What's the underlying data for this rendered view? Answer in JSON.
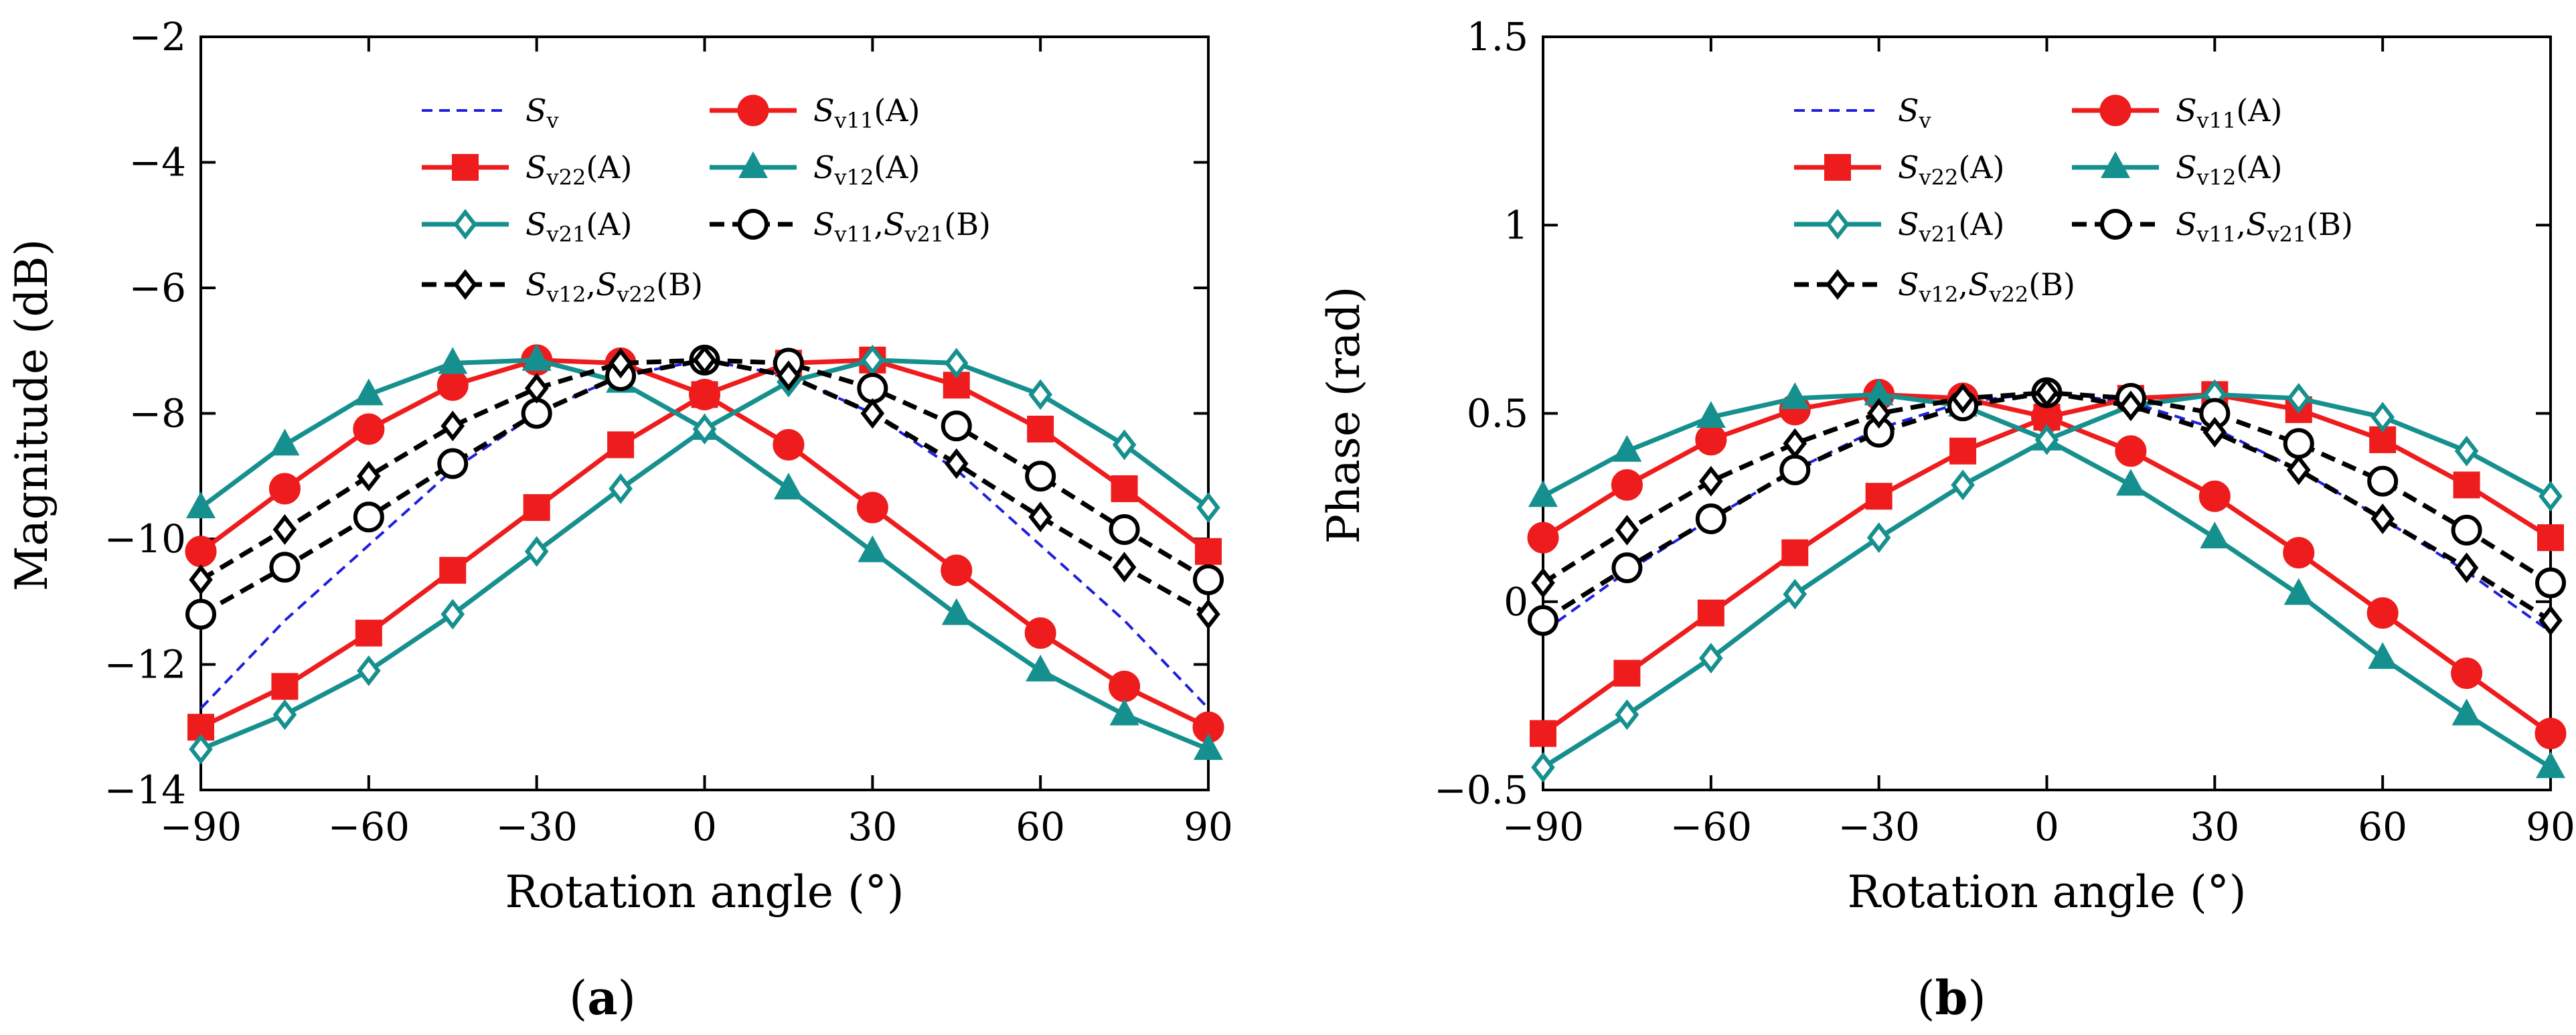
{
  "chart_data": [
    {
      "type": "line",
      "panel_label": "a",
      "xlabel": "Rotation angle (°)",
      "ylabel": "Magnitude (dB)",
      "xlim": [
        -90,
        90
      ],
      "ylim": [
        -14,
        -2
      ],
      "xticks": [
        -90,
        -60,
        -30,
        0,
        30,
        60,
        90
      ],
      "yticks": [
        -14,
        -12,
        -10,
        -8,
        -6,
        -4,
        -2
      ],
      "xtick_labels": [
        "−90",
        "−60",
        "−30",
        "0",
        "30",
        "60",
        "90"
      ],
      "ytick_labels": [
        "−14",
        "−12",
        "−10",
        "−8",
        "−6",
        "−4",
        "−2"
      ],
      "grid": false,
      "legend_position": "top-center",
      "x": [
        -90,
        -75,
        -60,
        -45,
        -30,
        -15,
        0,
        15,
        30,
        45,
        60,
        75,
        90
      ],
      "series": [
        {
          "name": "Sv",
          "label_base": "S",
          "label_sub": "v",
          "label_suffix": "",
          "style": "dashed",
          "marker": "none",
          "color": "#1f1fdd",
          "values": [
            -12.7,
            -11.3,
            -10.1,
            -8.9,
            -8.0,
            -7.4,
            -7.15,
            -7.4,
            -8.0,
            -8.9,
            -10.1,
            -11.3,
            -12.7
          ]
        },
        {
          "name": "Sv11(A)",
          "label_base": "S",
          "label_sub": "v11",
          "label_suffix": "(A)",
          "style": "solid",
          "marker": "circle",
          "color": "#ee1c1c",
          "values": [
            -10.2,
            -9.2,
            -8.25,
            -7.55,
            -7.15,
            -7.2,
            -7.7,
            -8.5,
            -9.5,
            -10.5,
            -11.5,
            -12.35,
            -13.0
          ]
        },
        {
          "name": "Sv22(A)",
          "label_base": "S",
          "label_sub": "v22",
          "label_suffix": "(A)",
          "style": "solid",
          "marker": "square",
          "color": "#ee1c1c",
          "values": [
            -13.0,
            -12.35,
            -11.5,
            -10.5,
            -9.5,
            -8.5,
            -7.7,
            -7.2,
            -7.15,
            -7.55,
            -8.25,
            -9.2,
            -10.2
          ]
        },
        {
          "name": "Sv12(A)",
          "label_base": "S",
          "label_sub": "v12",
          "label_suffix": "(A)",
          "style": "solid",
          "marker": "triangle",
          "color": "#16908e",
          "values": [
            -9.5,
            -8.5,
            -7.7,
            -7.2,
            -7.15,
            -7.5,
            -8.25,
            -9.2,
            -10.2,
            -11.2,
            -12.1,
            -12.8,
            -13.35
          ]
        },
        {
          "name": "Sv21(A)",
          "label_base": "S",
          "label_sub": "v21",
          "label_suffix": "(A)",
          "style": "solid",
          "marker": "diamond-open",
          "color": "#16908e",
          "values": [
            -13.35,
            -12.8,
            -12.1,
            -11.2,
            -10.2,
            -9.2,
            -8.25,
            -7.5,
            -7.15,
            -7.2,
            -7.7,
            -8.5,
            -9.5
          ]
        },
        {
          "name": "Sv11,Sv21(B)",
          "label_base": "S",
          "label_sub": "v11",
          "label_mid": ",S",
          "label_sub2": "v21",
          "label_suffix": "(B)",
          "style": "dashed",
          "marker": "circle-open",
          "color": "#000000",
          "values": [
            -11.2,
            -10.45,
            -9.65,
            -8.8,
            -8.0,
            -7.4,
            -7.15,
            -7.2,
            -7.6,
            -8.2,
            -9.0,
            -9.85,
            -10.65
          ]
        },
        {
          "name": "Sv12,Sv22(B)",
          "label_base": "S",
          "label_sub": "v12",
          "label_mid": ",S",
          "label_sub2": "v22",
          "label_suffix": "(B)",
          "style": "dashed",
          "marker": "diamond-open",
          "color": "#000000",
          "values": [
            -10.65,
            -9.85,
            -9.0,
            -8.2,
            -7.6,
            -7.2,
            -7.15,
            -7.4,
            -8.0,
            -8.8,
            -9.65,
            -10.45,
            -11.2
          ]
        }
      ]
    },
    {
      "type": "line",
      "panel_label": "b",
      "xlabel": "Rotation angle (°)",
      "ylabel": "Phase (rad)",
      "xlim": [
        -90,
        90
      ],
      "ylim": [
        -0.5,
        1.5
      ],
      "xticks": [
        -90,
        -60,
        -30,
        0,
        30,
        60,
        90
      ],
      "yticks": [
        -0.5,
        0,
        0.5,
        1,
        1.5
      ],
      "xtick_labels": [
        "−90",
        "−60",
        "−30",
        "0",
        "30",
        "60",
        "90"
      ],
      "ytick_labels": [
        "−0.5",
        "0",
        "0.5",
        "1",
        "1.5"
      ],
      "grid": false,
      "legend_position": "top-center",
      "x": [
        -90,
        -75,
        -60,
        -45,
        -30,
        -15,
        0,
        15,
        30,
        45,
        60,
        75,
        90
      ],
      "series": [
        {
          "name": "Sv",
          "label_base": "S",
          "label_sub": "v",
          "label_suffix": "",
          "style": "dashed",
          "marker": "none",
          "color": "#1f1fdd",
          "values": [
            -0.08,
            0.08,
            0.22,
            0.35,
            0.46,
            0.53,
            0.555,
            0.53,
            0.46,
            0.35,
            0.22,
            0.08,
            -0.08
          ]
        },
        {
          "name": "Sv11(A)",
          "label_base": "S",
          "label_sub": "v11",
          "label_suffix": "(A)",
          "style": "solid",
          "marker": "circle",
          "color": "#ee1c1c",
          "values": [
            0.17,
            0.31,
            0.43,
            0.51,
            0.55,
            0.54,
            0.49,
            0.4,
            0.28,
            0.13,
            -0.03,
            -0.19,
            -0.35
          ]
        },
        {
          "name": "Sv22(A)",
          "label_base": "S",
          "label_sub": "v22",
          "label_suffix": "(A)",
          "style": "solid",
          "marker": "square",
          "color": "#ee1c1c",
          "values": [
            -0.35,
            -0.19,
            -0.03,
            0.13,
            0.28,
            0.4,
            0.49,
            0.54,
            0.55,
            0.51,
            0.43,
            0.31,
            0.17
          ]
        },
        {
          "name": "Sv12(A)",
          "label_base": "S",
          "label_sub": "v12",
          "label_suffix": "(A)",
          "style": "solid",
          "marker": "triangle",
          "color": "#16908e",
          "values": [
            0.28,
            0.4,
            0.49,
            0.54,
            0.55,
            0.52,
            0.43,
            0.31,
            0.17,
            0.02,
            -0.15,
            -0.3,
            -0.44
          ]
        },
        {
          "name": "Sv21(A)",
          "label_base": "S",
          "label_sub": "v21",
          "label_suffix": "(A)",
          "style": "solid",
          "marker": "diamond-open",
          "color": "#16908e",
          "values": [
            -0.44,
            -0.3,
            -0.15,
            0.02,
            0.17,
            0.31,
            0.43,
            0.52,
            0.55,
            0.54,
            0.49,
            0.4,
            0.28
          ]
        },
        {
          "name": "Sv11,Sv21(B)",
          "label_base": "S",
          "label_sub": "v11",
          "label_mid": ",S",
          "label_sub2": "v21",
          "label_suffix": "(B)",
          "style": "dashed",
          "marker": "circle-open",
          "color": "#000000",
          "values": [
            -0.05,
            0.09,
            0.22,
            0.35,
            0.45,
            0.52,
            0.555,
            0.54,
            0.5,
            0.42,
            0.32,
            0.19,
            0.05
          ]
        },
        {
          "name": "Sv12,Sv22(B)",
          "label_base": "S",
          "label_sub": "v12",
          "label_mid": ",S",
          "label_sub2": "v22",
          "label_suffix": "(B)",
          "style": "dashed",
          "marker": "diamond-open",
          "color": "#000000",
          "values": [
            0.05,
            0.19,
            0.32,
            0.42,
            0.5,
            0.54,
            0.555,
            0.52,
            0.45,
            0.35,
            0.22,
            0.09,
            -0.05
          ]
        }
      ]
    }
  ]
}
